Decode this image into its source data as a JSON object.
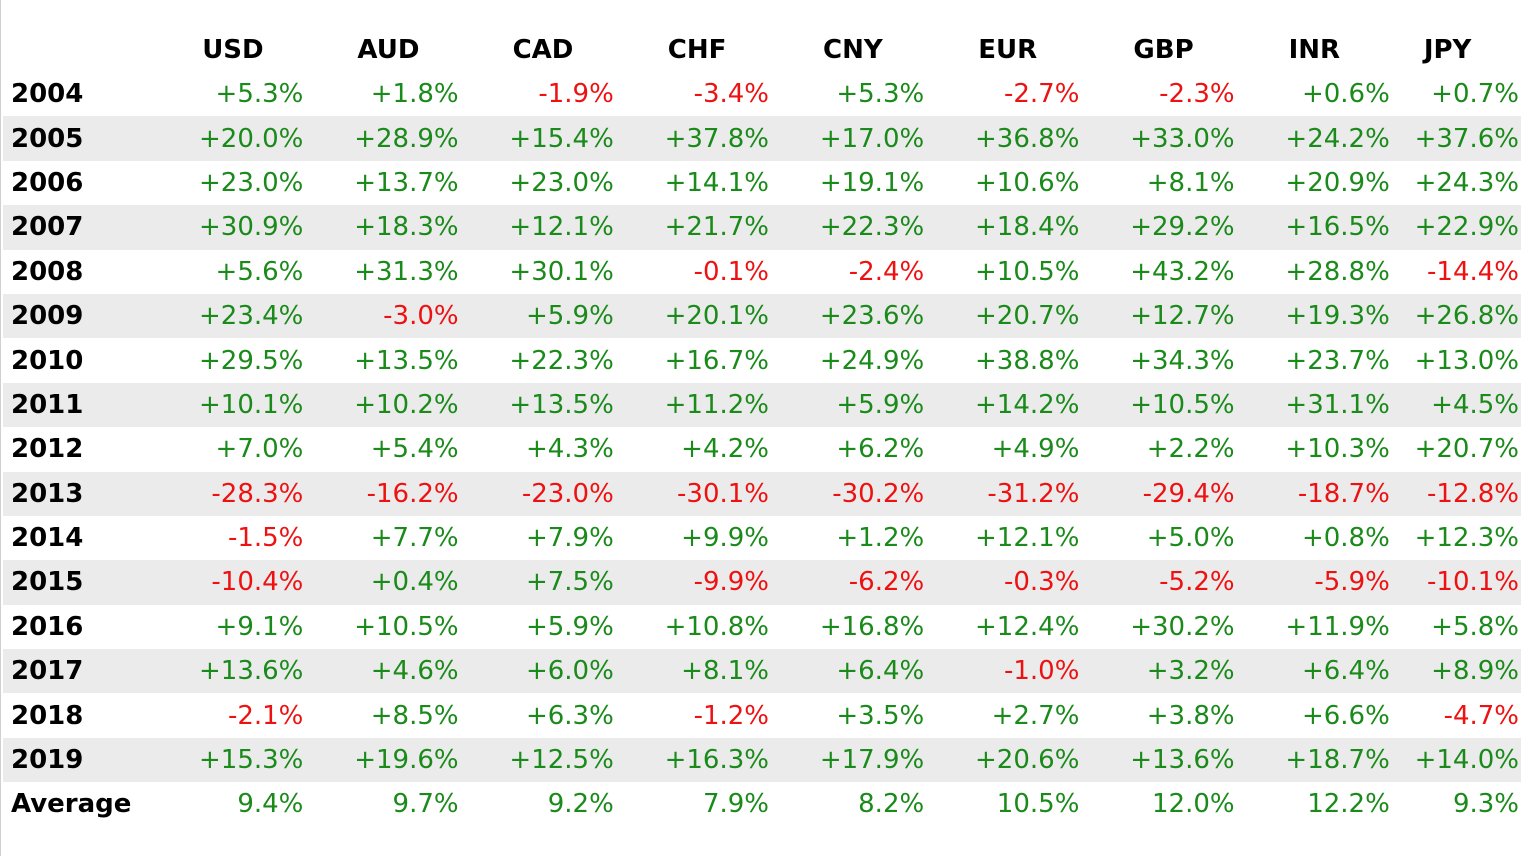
{
  "table": {
    "columns": [
      "",
      "USD",
      "AUD",
      "CAD",
      "CHF",
      "CNY",
      "EUR",
      "GBP",
      "INR",
      "JPY"
    ],
    "rows": [
      {
        "label": "2004",
        "values": [
          "+5.3%",
          "+1.8%",
          "-1.9%",
          "-3.4%",
          "+5.3%",
          "-2.7%",
          "-2.3%",
          "+0.6%",
          "+0.7%"
        ]
      },
      {
        "label": "2005",
        "values": [
          "+20.0%",
          "+28.9%",
          "+15.4%",
          "+37.8%",
          "+17.0%",
          "+36.8%",
          "+33.0%",
          "+24.2%",
          "+37.6%"
        ]
      },
      {
        "label": "2006",
        "values": [
          "+23.0%",
          "+13.7%",
          "+23.0%",
          "+14.1%",
          "+19.1%",
          "+10.6%",
          "+8.1%",
          "+20.9%",
          "+24.3%"
        ]
      },
      {
        "label": "2007",
        "values": [
          "+30.9%",
          "+18.3%",
          "+12.1%",
          "+21.7%",
          "+22.3%",
          "+18.4%",
          "+29.2%",
          "+16.5%",
          "+22.9%"
        ]
      },
      {
        "label": "2008",
        "values": [
          "+5.6%",
          "+31.3%",
          "+30.1%",
          "-0.1%",
          "-2.4%",
          "+10.5%",
          "+43.2%",
          "+28.8%",
          "-14.4%"
        ]
      },
      {
        "label": "2009",
        "values": [
          "+23.4%",
          "-3.0%",
          "+5.9%",
          "+20.1%",
          "+23.6%",
          "+20.7%",
          "+12.7%",
          "+19.3%",
          "+26.8%"
        ]
      },
      {
        "label": "2010",
        "values": [
          "+29.5%",
          "+13.5%",
          "+22.3%",
          "+16.7%",
          "+24.9%",
          "+38.8%",
          "+34.3%",
          "+23.7%",
          "+13.0%"
        ]
      },
      {
        "label": "2011",
        "values": [
          "+10.1%",
          "+10.2%",
          "+13.5%",
          "+11.2%",
          "+5.9%",
          "+14.2%",
          "+10.5%",
          "+31.1%",
          "+4.5%"
        ]
      },
      {
        "label": "2012",
        "values": [
          "+7.0%",
          "+5.4%",
          "+4.3%",
          "+4.2%",
          "+6.2%",
          "+4.9%",
          "+2.2%",
          "+10.3%",
          "+20.7%"
        ]
      },
      {
        "label": "2013",
        "values": [
          "-28.3%",
          "-16.2%",
          "-23.0%",
          "-30.1%",
          "-30.2%",
          "-31.2%",
          "-29.4%",
          "-18.7%",
          "-12.8%"
        ]
      },
      {
        "label": "2014",
        "values": [
          "-1.5%",
          "+7.7%",
          "+7.9%",
          "+9.9%",
          "+1.2%",
          "+12.1%",
          "+5.0%",
          "+0.8%",
          "+12.3%"
        ]
      },
      {
        "label": "2015",
        "values": [
          "-10.4%",
          "+0.4%",
          "+7.5%",
          "-9.9%",
          "-6.2%",
          "-0.3%",
          "-5.2%",
          "-5.9%",
          "-10.1%"
        ]
      },
      {
        "label": "2016",
        "values": [
          "+9.1%",
          "+10.5%",
          "+5.9%",
          "+10.8%",
          "+16.8%",
          "+12.4%",
          "+30.2%",
          "+11.9%",
          "+5.8%"
        ]
      },
      {
        "label": "2017",
        "values": [
          "+13.6%",
          "+4.6%",
          "+6.0%",
          "+8.1%",
          "+6.4%",
          "-1.0%",
          "+3.2%",
          "+6.4%",
          "+8.9%"
        ]
      },
      {
        "label": "2018",
        "values": [
          "-2.1%",
          "+8.5%",
          "+6.3%",
          "-1.2%",
          "+3.5%",
          "+2.7%",
          "+3.8%",
          "+6.6%",
          "-4.7%"
        ]
      },
      {
        "label": "2019",
        "values": [
          "+15.3%",
          "+19.6%",
          "+12.5%",
          "+16.3%",
          "+17.9%",
          "+20.6%",
          "+13.6%",
          "+18.7%",
          "+14.0%"
        ]
      }
    ],
    "average": {
      "label": "Average",
      "values": [
        "9.4%",
        "9.7%",
        "9.2%",
        "7.9%",
        "8.2%",
        "10.5%",
        "12.0%",
        "12.2%",
        "9.3%"
      ]
    }
  },
  "colors": {
    "positive": "#1a8a1a",
    "negative": "#ee1111",
    "row_shade": "#ebebeb"
  }
}
